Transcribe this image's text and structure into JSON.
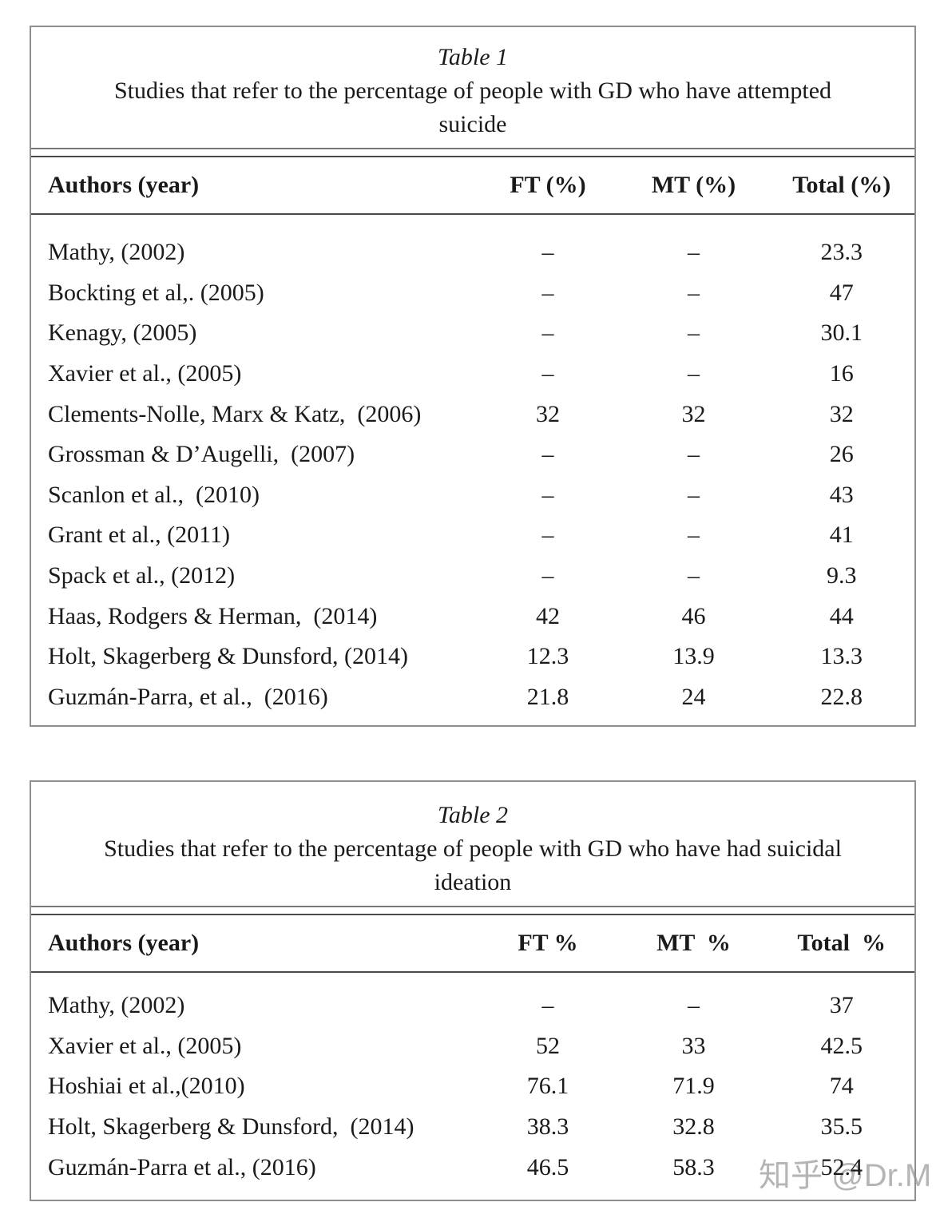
{
  "page": {
    "watermark": "知乎 @Dr.M",
    "colors": {
      "text": "#1a1a1a",
      "outer_border": "#8f8f8f",
      "rule": "#4a4a4a",
      "watermark": "#b5b5b5",
      "background": "#ffffff"
    }
  },
  "tables": [
    {
      "caption_label": "Table 1",
      "caption_line1": "Studies that refer to the percentage of people with GD who have attempted",
      "caption_line2": "suicide",
      "columns": {
        "authors": "Authors (year)",
        "ft": "FT (%)",
        "mt": "MT (%)",
        "total": "Total (%)"
      },
      "rows": [
        {
          "authors": "Mathy, (2002)",
          "ft": "–",
          "mt": "–",
          "total": "23.3"
        },
        {
          "authors": "Bockting et al,. (2005)",
          "ft": "–",
          "mt": "–",
          "total": "47"
        },
        {
          "authors": "Kenagy, (2005)",
          "ft": "–",
          "mt": "–",
          "total": "30.1"
        },
        {
          "authors": "Xavier et al., (2005)",
          "ft": "–",
          "mt": "–",
          "total": "16"
        },
        {
          "authors": "Clements-Nolle, Marx & Katz,  (2006)",
          "ft": "32",
          "mt": "32",
          "total": "32"
        },
        {
          "authors": "Grossman & D’Augelli,  (2007)",
          "ft": "–",
          "mt": "–",
          "total": "26"
        },
        {
          "authors": "Scanlon et al.,  (2010)",
          "ft": "–",
          "mt": "–",
          "total": "43"
        },
        {
          "authors": "Grant et al., (2011)",
          "ft": "–",
          "mt": "–",
          "total": "41"
        },
        {
          "authors": "Spack et al., (2012)",
          "ft": "–",
          "mt": "–",
          "total": "9.3"
        },
        {
          "authors": "Haas, Rodgers & Herman,  (2014)",
          "ft": "42",
          "mt": "46",
          "total": "44"
        },
        {
          "authors": "Holt, Skagerberg & Dunsford, (2014)",
          "ft": "12.3",
          "mt": "13.9",
          "total": "13.3"
        },
        {
          "authors": "Guzmán-Parra, et al.,  (2016)",
          "ft": "21.8",
          "mt": "24",
          "total": "22.8"
        }
      ]
    },
    {
      "caption_label": "Table 2",
      "caption_line1": "Studies that refer to the percentage of people with GD who have had suicidal",
      "caption_line2": "ideation",
      "columns": {
        "authors": "Authors (year)",
        "ft": "FT %",
        "mt": "MT  %",
        "total": "Total  %"
      },
      "rows": [
        {
          "authors": "Mathy, (2002)",
          "ft": "–",
          "mt": "–",
          "total": "37"
        },
        {
          "authors": "Xavier et al., (2005)",
          "ft": "52",
          "mt": "33",
          "total": "42.5"
        },
        {
          "authors": "Hoshiai et al.,(2010)",
          "ft": "76.1",
          "mt": "71.9",
          "total": "74"
        },
        {
          "authors": "Holt, Skagerberg & Dunsford,  (2014)",
          "ft": "38.3",
          "mt": "32.8",
          "total": "35.5"
        },
        {
          "authors": "Guzmán-Parra et al., (2016)",
          "ft": "46.5",
          "mt": "58.3",
          "total": "52.4"
        }
      ]
    }
  ]
}
